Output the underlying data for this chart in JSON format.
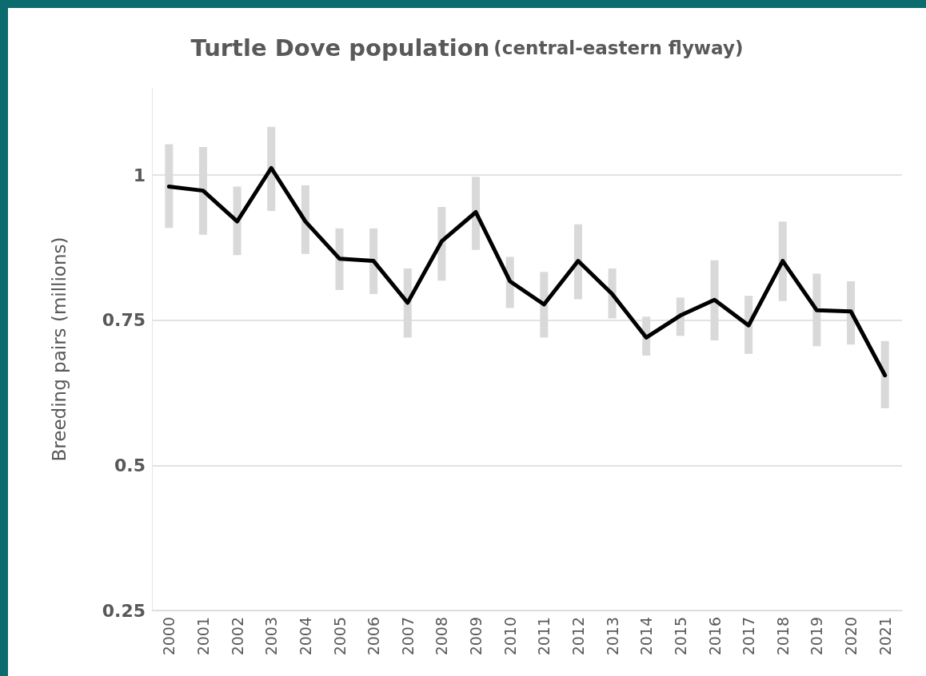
{
  "chart_data": {
    "type": "line",
    "title": "Turtle Dove population",
    "subtitle": "(central-eastern flyway)",
    "ylabel": "Breeding pairs (millions)",
    "categories": [
      "2000",
      "2001",
      "2002",
      "2003",
      "2004",
      "2005",
      "2006",
      "2007",
      "2008",
      "2009",
      "2010",
      "2011",
      "2012",
      "2013",
      "2014",
      "2015",
      "2016",
      "2017",
      "2018",
      "2019",
      "2020",
      "2021"
    ],
    "series": [
      {
        "color": "#000000",
        "values": [
          0.98,
          0.973,
          0.92,
          1.012,
          0.92,
          0.856,
          0.852,
          0.78,
          0.886,
          0.936,
          0.817,
          0.777,
          0.852,
          0.795,
          0.72,
          0.758,
          0.785,
          0.741,
          0.852,
          0.767,
          0.765,
          0.655
        ],
        "errors": [
          [
            0.909,
            1.053
          ],
          [
            0.897,
            1.048
          ],
          [
            0.862,
            0.98
          ],
          [
            0.938,
            1.083
          ],
          [
            0.864,
            0.982
          ],
          [
            0.802,
            0.908
          ],
          [
            0.795,
            0.908
          ],
          [
            0.72,
            0.839
          ],
          [
            0.818,
            0.945
          ],
          [
            0.871,
            0.997
          ],
          [
            0.771,
            0.859
          ],
          [
            0.72,
            0.833
          ],
          [
            0.786,
            0.915
          ],
          [
            0.753,
            0.839
          ],
          [
            0.689,
            0.756
          ],
          [
            0.723,
            0.789
          ],
          [
            0.715,
            0.853
          ],
          [
            0.692,
            0.792
          ],
          [
            0.783,
            0.92
          ],
          [
            0.705,
            0.83
          ],
          [
            0.708,
            0.817
          ],
          [
            0.598,
            0.714
          ]
        ]
      }
    ],
    "ylim": [
      0.25,
      1.15
    ],
    "yticks": [
      0.25,
      0.5,
      0.75,
      1
    ],
    "grid": "y",
    "marker": "none",
    "line_style": "solid"
  }
}
